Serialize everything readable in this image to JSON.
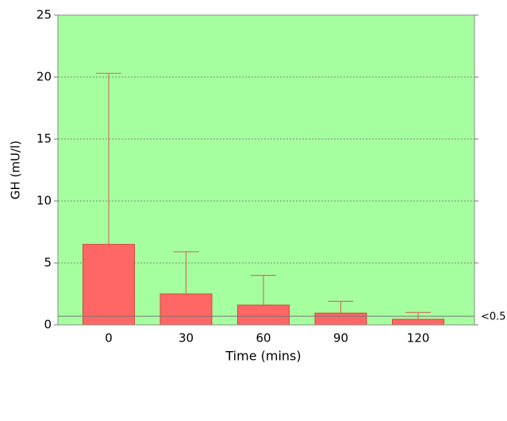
{
  "chart_data": {
    "type": "bar",
    "xlabel": "Time (mins)",
    "ylabel": "GH (mU/l)",
    "categories": [
      "0",
      "30",
      "60",
      "90",
      "120"
    ],
    "values": [
      6.5,
      2.5,
      1.6,
      0.95,
      0.45
    ],
    "errors": [
      13.8,
      3.4,
      2.4,
      0.95,
      0.55
    ],
    "color": "#ff6666",
    "edge_color": "#d04a3a",
    "error_color": "#c8785a",
    "background": "#a6ff9f",
    "ylim": [
      0,
      25
    ],
    "yticks": [
      0,
      5,
      10,
      15,
      20,
      25
    ],
    "grid": true,
    "reference_line": {
      "value": 0.7,
      "label": "<0.5"
    }
  }
}
